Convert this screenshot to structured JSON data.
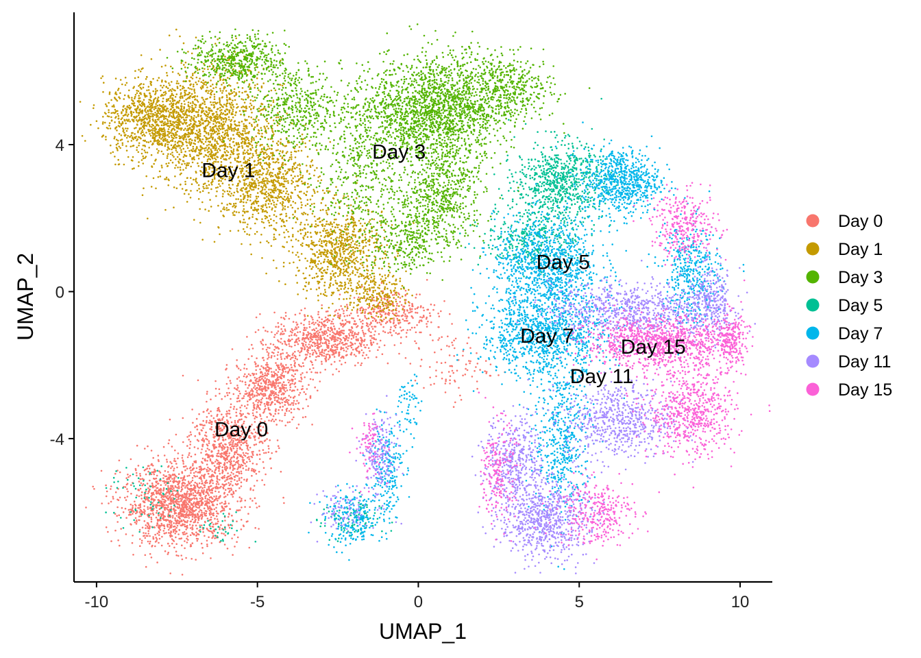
{
  "chart_data": {
    "type": "scatter",
    "title": "",
    "xlabel": "UMAP_1",
    "ylabel": "UMAP_2",
    "xlim": [
      -10.7,
      11.0
    ],
    "ylim": [
      -7.9,
      7.6
    ],
    "x_ticks": [
      -10,
      -5,
      0,
      5,
      10
    ],
    "x_tick_labels": [
      "-10",
      "-5",
      "0",
      "5",
      "10"
    ],
    "y_ticks": [
      -4,
      0,
      4
    ],
    "y_tick_labels": [
      "-4",
      "0",
      "4"
    ],
    "grid": false,
    "legend_position": "right",
    "point_size": "small",
    "series": [
      {
        "name": "Day 0",
        "color": "#F8766D",
        "label": "Day 0",
        "label_pos": [
          -5.5,
          -3.75
        ],
        "clusters": [
          {
            "center": [
              -7.4,
              -5.8
            ],
            "spread": [
              1.2,
              0.75
            ],
            "count": 1500
          },
          {
            "center": [
              -5.9,
              -4.2
            ],
            "spread": [
              0.8,
              0.8
            ],
            "count": 700
          },
          {
            "center": [
              -4.6,
              -2.6
            ],
            "spread": [
              0.75,
              0.6
            ],
            "count": 600
          },
          {
            "center": [
              -2.9,
              -1.3
            ],
            "spread": [
              1.1,
              0.5
            ],
            "count": 700
          },
          {
            "center": [
              -0.8,
              -0.6
            ],
            "spread": [
              0.9,
              0.45
            ],
            "count": 300
          },
          {
            "center": [
              1.0,
              -2.0
            ],
            "spread": [
              0.8,
              0.6
            ],
            "count": 90
          }
        ]
      },
      {
        "name": "Day 1",
        "color": "#C49A00",
        "label": "Day 1",
        "label_pos": [
          -5.9,
          3.3
        ],
        "clusters": [
          {
            "center": [
              -8.3,
              4.7
            ],
            "spread": [
              1.0,
              0.7
            ],
            "count": 900
          },
          {
            "center": [
              -6.4,
              4.4
            ],
            "spread": [
              1.2,
              1.2
            ],
            "count": 1400
          },
          {
            "center": [
              -4.6,
              2.9
            ],
            "spread": [
              1.0,
              0.9
            ],
            "count": 800
          },
          {
            "center": [
              -2.5,
              1.1
            ],
            "spread": [
              0.95,
              0.85
            ],
            "count": 800
          },
          {
            "center": [
              -1.3,
              -0.1
            ],
            "spread": [
              0.6,
              0.4
            ],
            "count": 200
          }
        ]
      },
      {
        "name": "Day 3",
        "color": "#53B400",
        "label": "Day 3",
        "label_pos": [
          -0.6,
          3.8
        ],
        "clusters": [
          {
            "center": [
              -5.6,
              6.3
            ],
            "spread": [
              1.0,
              0.45
            ],
            "count": 500
          },
          {
            "center": [
              -3.8,
              5.0
            ],
            "spread": [
              0.9,
              0.8
            ],
            "count": 450
          },
          {
            "center": [
              -2.0,
              3.0
            ],
            "spread": [
              0.9,
              1.0
            ],
            "count": 300
          },
          {
            "center": [
              -0.6,
              4.8
            ],
            "spread": [
              1.2,
              0.9
            ],
            "count": 800
          },
          {
            "center": [
              1.0,
              5.0
            ],
            "spread": [
              1.1,
              1.0
            ],
            "count": 1200
          },
          {
            "center": [
              0.7,
              2.6
            ],
            "spread": [
              0.9,
              0.9
            ],
            "count": 600
          },
          {
            "center": [
              2.9,
              5.5
            ],
            "spread": [
              0.9,
              0.6
            ],
            "count": 400
          },
          {
            "center": [
              -0.5,
              1.4
            ],
            "spread": [
              0.9,
              0.6
            ],
            "count": 300
          }
        ]
      },
      {
        "name": "Day 5",
        "color": "#00C094",
        "label": "Day 5",
        "label_pos": [
          4.5,
          0.8
        ],
        "clusters": [
          {
            "center": [
              4.4,
              3.0
            ],
            "spread": [
              0.9,
              0.7
            ],
            "count": 700
          },
          {
            "center": [
              3.5,
              1.5
            ],
            "spread": [
              1.0,
              0.6
            ],
            "count": 300
          },
          {
            "center": [
              -8.4,
              -5.6
            ],
            "spread": [
              0.8,
              0.6
            ],
            "count": 60
          },
          {
            "center": [
              -6.2,
              -6.5
            ],
            "spread": [
              0.5,
              0.3
            ],
            "count": 30
          },
          {
            "center": [
              -2.1,
              -6.2
            ],
            "spread": [
              0.6,
              0.4
            ],
            "count": 100
          }
        ]
      },
      {
        "name": "Day 7",
        "color": "#00B6EB",
        "label": "Day 7",
        "label_pos": [
          4.0,
          -1.2
        ],
        "clusters": [
          {
            "center": [
              6.3,
              3.0
            ],
            "spread": [
              0.8,
              0.6
            ],
            "count": 700
          },
          {
            "center": [
              4.0,
              0.7
            ],
            "spread": [
              1.1,
              0.9
            ],
            "count": 1000
          },
          {
            "center": [
              3.9,
              -1.2
            ],
            "spread": [
              1.3,
              0.75
            ],
            "count": 1000
          },
          {
            "center": [
              4.5,
              -4.0
            ],
            "spread": [
              0.6,
              1.4
            ],
            "count": 500
          },
          {
            "center": [
              8.5,
              0.5
            ],
            "spread": [
              0.6,
              0.9
            ],
            "count": 400
          },
          {
            "center": [
              -2.0,
              -6.2
            ],
            "spread": [
              0.6,
              0.5
            ],
            "count": 220
          },
          {
            "center": [
              -1.0,
              -4.8
            ],
            "spread": [
              0.35,
              0.9
            ],
            "count": 200
          },
          {
            "center": [
              -0.3,
              -3.1
            ],
            "spread": [
              0.25,
              0.6
            ],
            "count": 60
          }
        ]
      },
      {
        "name": "Day 11",
        "color": "#A58AFF",
        "label": "Day 11",
        "label_pos": [
          5.7,
          -2.3
        ],
        "clusters": [
          {
            "center": [
              3.9,
              -6.2
            ],
            "spread": [
              0.9,
              0.7
            ],
            "count": 700
          },
          {
            "center": [
              3.0,
              -4.6
            ],
            "spread": [
              0.6,
              0.8
            ],
            "count": 400
          },
          {
            "center": [
              6.2,
              -3.5
            ],
            "spread": [
              1.1,
              0.7
            ],
            "count": 600
          },
          {
            "center": [
              6.5,
              -0.5
            ],
            "spread": [
              1.6,
              0.5
            ],
            "count": 700
          },
          {
            "center": [
              9.1,
              -0.3
            ],
            "spread": [
              0.5,
              0.6
            ],
            "count": 300
          },
          {
            "center": [
              -1.2,
              -4.5
            ],
            "spread": [
              0.35,
              0.8
            ],
            "count": 180
          },
          {
            "center": [
              -2.3,
              -6.0
            ],
            "spread": [
              0.5,
              0.4
            ],
            "count": 90
          }
        ]
      },
      {
        "name": "Day 15",
        "color": "#FB61D7",
        "label": "Day 15",
        "label_pos": [
          7.3,
          -1.5
        ],
        "clusters": [
          {
            "center": [
              7.5,
              -1.4
            ],
            "spread": [
              1.5,
              0.45
            ],
            "count": 1000
          },
          {
            "center": [
              8.5,
              -3.3
            ],
            "spread": [
              0.9,
              0.8
            ],
            "count": 600
          },
          {
            "center": [
              8.3,
              1.8
            ],
            "spread": [
              0.7,
              0.6
            ],
            "count": 300
          },
          {
            "center": [
              5.5,
              -6.0
            ],
            "spread": [
              0.8,
              0.6
            ],
            "count": 300
          },
          {
            "center": [
              2.5,
              -4.9
            ],
            "spread": [
              0.35,
              0.9
            ],
            "count": 200
          },
          {
            "center": [
              9.7,
              -1.3
            ],
            "spread": [
              0.3,
              0.5
            ],
            "count": 200
          },
          {
            "center": [
              -1.5,
              -4.2
            ],
            "spread": [
              0.3,
              0.6
            ],
            "count": 80
          }
        ]
      }
    ]
  }
}
